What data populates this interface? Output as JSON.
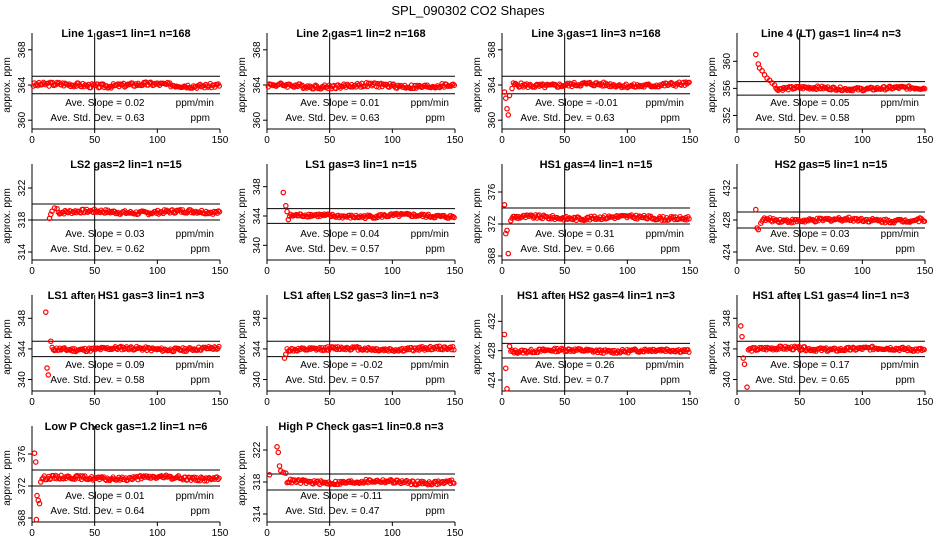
{
  "figure_title": "SPL_090302  CO2 Shapes",
  "colors": {
    "points": "#ff0000",
    "axes": "#000000",
    "background": "#ffffff"
  },
  "chart_data": [
    {
      "type": "scatter",
      "title": "Line 1 gas=1 lin=1 n=168",
      "ylabel": "approx. ppm",
      "xlabel": "",
      "xlim": [
        0,
        150
      ],
      "ylim": [
        359,
        369
      ],
      "xticks": [
        0,
        50,
        100,
        150
      ],
      "yticks": [
        360,
        364,
        368
      ],
      "band": [
        363,
        365
      ],
      "vline": 50,
      "baseline": 364,
      "transient": [],
      "slope_label": "Ave. Slope =",
      "slope_value": "0.02",
      "slope_unit": "ppm/min",
      "sd_label": "Ave. Std. Dev. =",
      "sd_value": "0.63",
      "sd_unit": "ppm"
    },
    {
      "type": "scatter",
      "title": "Line 2 gas=1 lin=2 n=168",
      "ylabel": "approx. ppm",
      "xlabel": "",
      "xlim": [
        0,
        150
      ],
      "ylim": [
        359,
        369
      ],
      "xticks": [
        0,
        50,
        100,
        150
      ],
      "yticks": [
        360,
        364,
        368
      ],
      "band": [
        363,
        365
      ],
      "vline": 50,
      "baseline": 363.9,
      "transient": [],
      "slope_label": "Ave. Slope =",
      "slope_value": "0.01",
      "slope_unit": "ppm/min",
      "sd_label": "Ave. Std. Dev. =",
      "sd_value": "0.63",
      "sd_unit": "ppm"
    },
    {
      "type": "scatter",
      "title": "Line 3 gas=1 lin=3 n=168",
      "ylabel": "approx. ppm",
      "xlabel": "",
      "xlim": [
        0,
        150
      ],
      "ylim": [
        359,
        369
      ],
      "xticks": [
        0,
        50,
        100,
        150
      ],
      "yticks": [
        360,
        364,
        368
      ],
      "band": [
        363,
        365
      ],
      "vline": 50,
      "baseline": 364,
      "transient": [
        {
          "x": 2,
          "y": 363.2
        },
        {
          "x": 3,
          "y": 362.5
        },
        {
          "x": 4,
          "y": 361.3
        },
        {
          "x": 5,
          "y": 360.6
        },
        {
          "x": 6,
          "y": 362.8
        },
        {
          "x": 8,
          "y": 363.6
        }
      ],
      "slope_label": "Ave. Slope =",
      "slope_value": "-0.01",
      "slope_unit": "ppm/min",
      "sd_label": "Ave. Std. Dev. =",
      "sd_value": "0.63",
      "sd_unit": "ppm"
    },
    {
      "type": "scatter",
      "title": "Line 4 (LT) gas=1 lin=4 n=3",
      "ylabel": "approx. ppm",
      "xlabel": "",
      "xlim": [
        0,
        150
      ],
      "ylim": [
        350,
        363
      ],
      "xticks": [
        0,
        50,
        100,
        150
      ],
      "yticks": [
        352,
        356,
        360
      ],
      "band": [
        355,
        357
      ],
      "vline": 50,
      "baseline": 356,
      "transient": [
        {
          "x": 15,
          "y": 361
        },
        {
          "x": 17,
          "y": 359.6
        },
        {
          "x": 18,
          "y": 359
        },
        {
          "x": 20,
          "y": 358.6
        },
        {
          "x": 22,
          "y": 358
        },
        {
          "x": 24,
          "y": 357.5
        },
        {
          "x": 26,
          "y": 357.2
        },
        {
          "x": 28,
          "y": 356.8
        },
        {
          "x": 30,
          "y": 356.5
        }
      ],
      "slope_label": "Ave. Slope =",
      "slope_value": "0.05",
      "slope_unit": "ppm/min",
      "sd_label": "Ave. Std. Dev. =",
      "sd_value": "0.58",
      "sd_unit": "ppm"
    },
    {
      "type": "scatter",
      "title": "LS2 gas=2 lin=1 n=15",
      "ylabel": "approx. ppm",
      "xlabel": "",
      "xlim": [
        0,
        150
      ],
      "ylim": [
        313,
        324
      ],
      "xticks": [
        0,
        50,
        100,
        150
      ],
      "yticks": [
        314,
        318,
        322
      ],
      "band": [
        318,
        320
      ],
      "vline": 50,
      "baseline": 319,
      "transient": [
        {
          "x": 14,
          "y": 318.2
        },
        {
          "x": 15,
          "y": 318.7
        },
        {
          "x": 16,
          "y": 319.1
        },
        {
          "x": 18,
          "y": 319.5
        },
        {
          "x": 20,
          "y": 319.4
        }
      ],
      "slope_label": "Ave. Slope =",
      "slope_value": "0.03",
      "slope_unit": "ppm/min",
      "sd_label": "Ave. Std. Dev. =",
      "sd_value": "0.62",
      "sd_unit": "ppm"
    },
    {
      "type": "scatter",
      "title": "LS1 gas=3 lin=1 n=15",
      "ylabel": "approx. ppm",
      "xlabel": "",
      "xlim": [
        0,
        150
      ],
      "ylim": [
        338,
        350
      ],
      "xticks": [
        0,
        50,
        100,
        150
      ],
      "yticks": [
        340,
        344,
        348
      ],
      "band": [
        343,
        345
      ],
      "vline": 50,
      "baseline": 344,
      "transient": [
        {
          "x": 13,
          "y": 347.2
        },
        {
          "x": 15,
          "y": 345.4
        },
        {
          "x": 16,
          "y": 344.6
        },
        {
          "x": 17,
          "y": 343.5
        }
      ],
      "slope_label": "Ave. Slope =",
      "slope_value": "0.04",
      "slope_unit": "ppm/min",
      "sd_label": "Ave. Std. Dev. =",
      "sd_value": "0.57",
      "sd_unit": "ppm"
    },
    {
      "type": "scatter",
      "title": "HS1 gas=4 lin=1 n=15",
      "ylabel": "approx. ppm",
      "xlabel": "",
      "xlim": [
        0,
        150
      ],
      "ylim": [
        367.5,
        378.5
      ],
      "xticks": [
        0,
        50,
        100,
        150
      ],
      "yticks": [
        368,
        372,
        376
      ],
      "band": [
        372,
        374
      ],
      "vline": 50,
      "baseline": 372.8,
      "transient": [
        {
          "x": 2,
          "y": 374.4
        },
        {
          "x": 3,
          "y": 370.8
        },
        {
          "x": 4,
          "y": 371.2
        },
        {
          "x": 5,
          "y": 368.3
        },
        {
          "x": 7,
          "y": 372.4
        }
      ],
      "slope_label": "Ave. Slope =",
      "slope_value": "0.31",
      "slope_unit": "ppm/min",
      "sd_label": "Ave. Std. Dev. =",
      "sd_value": "0.66",
      "sd_unit": "ppm"
    },
    {
      "type": "scatter",
      "title": "HS2 gas=5 lin=1 n=15",
      "ylabel": "approx. ppm",
      "xlabel": "",
      "xlim": [
        0,
        150
      ],
      "ylim": [
        423,
        434
      ],
      "xticks": [
        0,
        50,
        100,
        150
      ],
      "yticks": [
        424,
        428,
        432
      ],
      "band": [
        427,
        429
      ],
      "vline": 50,
      "baseline": 428,
      "transient": [
        {
          "x": 15,
          "y": 429.3
        },
        {
          "x": 16,
          "y": 427
        },
        {
          "x": 17,
          "y": 426.8
        },
        {
          "x": 19,
          "y": 427.6
        }
      ],
      "slope_label": "Ave. Slope =",
      "slope_value": "0.03",
      "slope_unit": "ppm/min",
      "sd_label": "Ave. Std. Dev. =",
      "sd_value": "0.69",
      "sd_unit": "ppm"
    },
    {
      "type": "scatter",
      "title": "LS1 after HS1 gas=3 lin=1 n=3",
      "ylabel": "approx. ppm",
      "xlabel": "",
      "xlim": [
        0,
        150
      ],
      "ylim": [
        338.5,
        350
      ],
      "xticks": [
        0,
        50,
        100,
        150
      ],
      "yticks": [
        340,
        344,
        348
      ],
      "band": [
        343,
        345
      ],
      "vline": 50,
      "baseline": 344,
      "transient": [
        {
          "x": 11,
          "y": 348.8
        },
        {
          "x": 12,
          "y": 341.5
        },
        {
          "x": 13,
          "y": 340.6
        },
        {
          "x": 15,
          "y": 345
        }
      ],
      "slope_label": "Ave. Slope =",
      "slope_value": "0.09",
      "slope_unit": "ppm/min",
      "sd_label": "Ave. Std. Dev. =",
      "sd_value": "0.58",
      "sd_unit": "ppm"
    },
    {
      "type": "scatter",
      "title": "LS1 after LS2 gas=3 lin=1 n=3",
      "ylabel": "approx. ppm",
      "xlabel": "",
      "xlim": [
        0,
        150
      ],
      "ylim": [
        338.5,
        350
      ],
      "xticks": [
        0,
        50,
        100,
        150
      ],
      "yticks": [
        340,
        344,
        348
      ],
      "band": [
        343,
        345
      ],
      "vline": 50,
      "baseline": 344,
      "transient": [
        {
          "x": 14,
          "y": 342.8
        },
        {
          "x": 15,
          "y": 343.3
        }
      ],
      "slope_label": "Ave. Slope =",
      "slope_value": "-0.02",
      "slope_unit": "ppm/min",
      "sd_label": "Ave. Std. Dev. =",
      "sd_value": "0.57",
      "sd_unit": "ppm"
    },
    {
      "type": "scatter",
      "title": "HS1 after HS2 gas=4 lin=1 n=3",
      "ylabel": "approx. ppm",
      "xlabel": "",
      "xlim": [
        0,
        150
      ],
      "ylim": [
        422.5,
        434.5
      ],
      "xticks": [
        0,
        50,
        100,
        150
      ],
      "yticks": [
        424,
        428,
        432
      ],
      "band": [
        427,
        429
      ],
      "vline": 50,
      "baseline": 428,
      "transient": [
        {
          "x": 2,
          "y": 430.2
        },
        {
          "x": 3,
          "y": 425.6
        },
        {
          "x": 4,
          "y": 422.8
        },
        {
          "x": 6,
          "y": 428.6
        }
      ],
      "slope_label": "Ave. Slope =",
      "slope_value": "0.26",
      "slope_unit": "ppm/min",
      "sd_label": "Ave. Std. Dev. =",
      "sd_value": "0.7",
      "sd_unit": "ppm"
    },
    {
      "type": "scatter",
      "title": "HS1 after LS1 gas=4 lin=1 n=3",
      "ylabel": "approx. ppm",
      "xlabel": "",
      "xlim": [
        0,
        150
      ],
      "ylim": [
        338.5,
        350
      ],
      "xticks": [
        0,
        50,
        100,
        150
      ],
      "yticks": [
        340,
        344,
        348
      ],
      "band": [
        343,
        345
      ],
      "vline": 50,
      "baseline": 344,
      "transient": [
        {
          "x": 3,
          "y": 347
        },
        {
          "x": 4,
          "y": 345.6
        },
        {
          "x": 5,
          "y": 342.8
        },
        {
          "x": 6,
          "y": 342
        },
        {
          "x": 8,
          "y": 339
        }
      ],
      "slope_label": "Ave. Slope =",
      "slope_value": "0.17",
      "slope_unit": "ppm/min",
      "sd_label": "Ave. Std. Dev. =",
      "sd_value": "0.65",
      "sd_unit": "ppm"
    },
    {
      "type": "scatter",
      "title": "Low P Check gas=1.2 lin=1 n=6",
      "ylabel": "approx. ppm",
      "xlabel": "",
      "xlim": [
        0,
        150
      ],
      "ylim": [
        367.5,
        378.5
      ],
      "xticks": [
        0,
        50,
        100,
        150
      ],
      "yticks": [
        368,
        372,
        376
      ],
      "band": [
        372,
        374
      ],
      "vline": 50,
      "baseline": 373,
      "transient": [
        {
          "x": 2,
          "y": 376.1
        },
        {
          "x": 3,
          "y": 375
        },
        {
          "x": 4,
          "y": 370.8
        },
        {
          "x": 5,
          "y": 370.2
        },
        {
          "x": 6,
          "y": 369.8
        },
        {
          "x": 7,
          "y": 372.5
        },
        {
          "x": 3.5,
          "y": 367.8
        }
      ],
      "slope_label": "Ave. Slope =",
      "slope_value": "0.01",
      "slope_unit": "ppm/min",
      "sd_label": "Ave. Std. Dev. =",
      "sd_value": "0.64",
      "sd_unit": "ppm"
    },
    {
      "type": "scatter",
      "title": "High P Check gas=1 lin=0.8 n=3",
      "ylabel": "approx. ppm",
      "xlabel": "",
      "xlim": [
        0,
        150
      ],
      "ylim": [
        313,
        324
      ],
      "xticks": [
        0,
        50,
        100,
        150
      ],
      "yticks": [
        314,
        318,
        322
      ],
      "band": [
        317,
        319
      ],
      "vline": 50,
      "baseline": 318,
      "transient": [
        {
          "x": 2,
          "y": 318.9
        },
        {
          "x": 8,
          "y": 322.4
        },
        {
          "x": 9,
          "y": 321.7
        },
        {
          "x": 10,
          "y": 320
        },
        {
          "x": 11,
          "y": 319.4
        },
        {
          "x": 13,
          "y": 319.2
        },
        {
          "x": 15,
          "y": 319.1
        }
      ],
      "slope_label": "Ave. Slope =",
      "slope_value": "-0.11",
      "slope_unit": "ppm/min",
      "sd_label": "Ave. Std. Dev. =",
      "sd_value": "0.47",
      "sd_unit": "ppm"
    }
  ]
}
